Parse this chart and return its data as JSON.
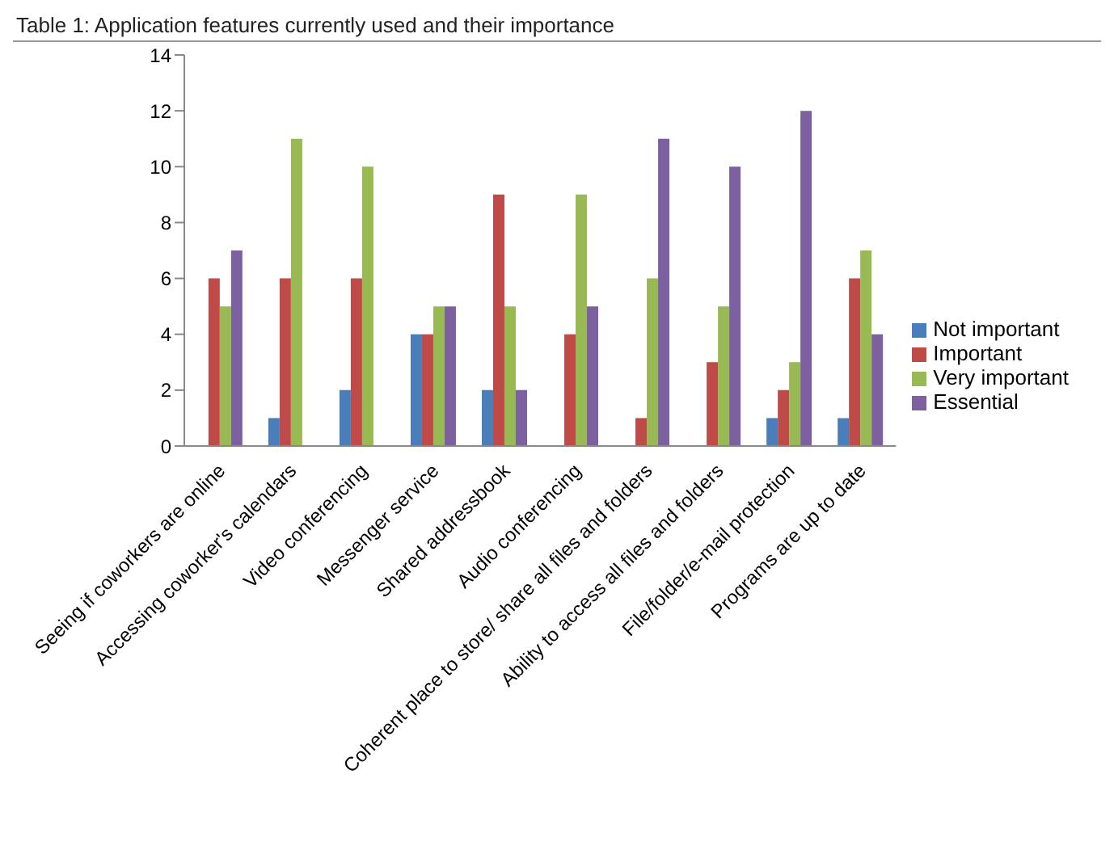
{
  "chart_data": {
    "type": "bar",
    "title": "Table 1: Application features currently used and their importance",
    "categories": [
      "Seeing if coworkers are online",
      "Accessing coworker's calendars",
      "Video conferencing",
      "Messenger service",
      "Shared addressbook",
      "Audio conferencing",
      "Coherent place to store/ share all files and folders",
      "Ability to access all files and folders",
      "File/folder/e-mail protection",
      "Programs are up to date"
    ],
    "series": [
      {
        "name": "Not important",
        "color": "#4a7ebb",
        "values": [
          0,
          1,
          2,
          4,
          2,
          0,
          0,
          0,
          1,
          1
        ]
      },
      {
        "name": "Important",
        "color": "#be4b48",
        "values": [
          6,
          6,
          6,
          4,
          9,
          4,
          1,
          3,
          2,
          6
        ]
      },
      {
        "name": "Very important",
        "color": "#98b954",
        "values": [
          5,
          11,
          10,
          5,
          5,
          9,
          6,
          5,
          3,
          7
        ]
      },
      {
        "name": "Essential",
        "color": "#7d60a0",
        "values": [
          7,
          0,
          0,
          5,
          2,
          5,
          11,
          10,
          12,
          4
        ]
      }
    ],
    "ylim": [
      0,
      14
    ],
    "yticks": [
      0,
      2,
      4,
      6,
      8,
      10,
      12,
      14
    ],
    "legend": "right"
  }
}
